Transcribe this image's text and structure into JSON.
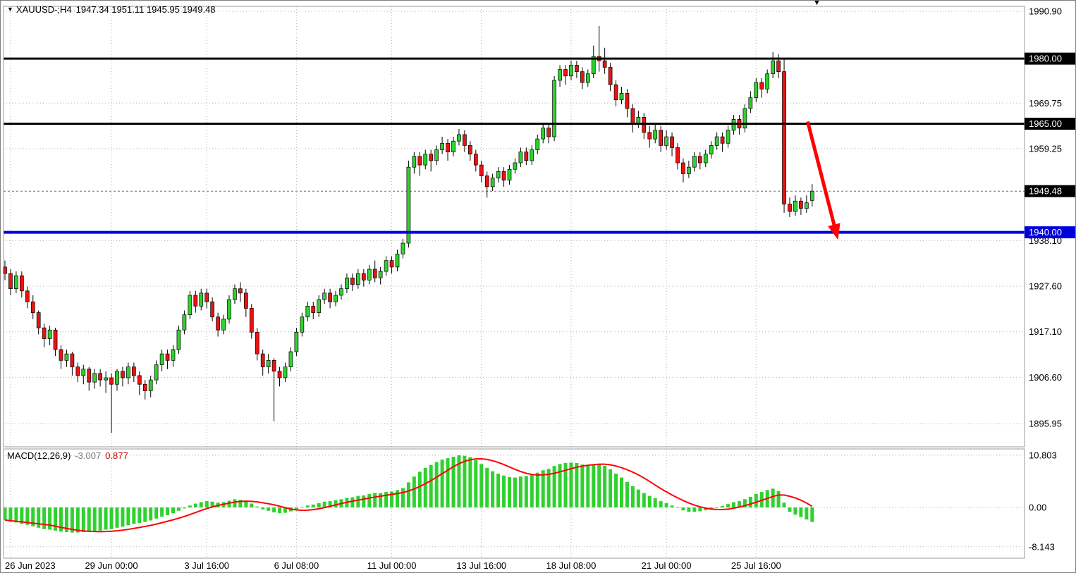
{
  "header": {
    "dropdown_icon": "▼",
    "symbol_period": "XAUUSD-;H4",
    "ohlc": "1947.34 1951.11 1945.95 1949.48",
    "shift_marker": "▼"
  },
  "chart_data": {
    "type": "candlestick",
    "symbol": "XAUUSD-",
    "timeframe": "H4",
    "title": "XAUUSD-;H4",
    "ohlc_display": {
      "open": "1947.34",
      "high": "1951.11",
      "low": "1945.95",
      "close": "1949.48"
    },
    "price_axis": {
      "plain_labels": [
        {
          "price": 1990.9,
          "text": "1990.90"
        },
        {
          "price": 1969.75,
          "text": "1969.75"
        },
        {
          "price": 1959.25,
          "text": "1959.25"
        },
        {
          "price": 1938.1,
          "text": "1938.10"
        },
        {
          "price": 1927.6,
          "text": "1927.60"
        },
        {
          "price": 1917.1,
          "text": "1917.10"
        },
        {
          "price": 1906.6,
          "text": "1906.60"
        },
        {
          "price": 1895.95,
          "text": "1895.95"
        }
      ],
      "boxed_labels": [
        {
          "price": 1980.0,
          "text": "1980.00",
          "bg": "#000000"
        },
        {
          "price": 1965.0,
          "text": "1965.00",
          "bg": "#000000"
        },
        {
          "price": 1949.48,
          "text": "1949.48",
          "bg": "#000000"
        },
        {
          "price": 1940.0,
          "text": "1940.00",
          "bg": "#0000dd"
        }
      ]
    },
    "time_axis": [
      {
        "text": "26 Jun 2023",
        "index": 1
      },
      {
        "text": "29 Jun 00:00",
        "index": 19
      },
      {
        "text": "3 Jul 16:00",
        "index": 36
      },
      {
        "text": "6 Jul 08:00",
        "index": 52
      },
      {
        "text": "11 Jul 00:00",
        "index": 69
      },
      {
        "text": "13 Jul 16:00",
        "index": 85
      },
      {
        "text": "18 Jul 08:00",
        "index": 101
      },
      {
        "text": "21 Jul 00:00",
        "index": 118
      },
      {
        "text": "25 Jul 16:00",
        "index": 134
      }
    ],
    "hlines": [
      {
        "price": 1980.0,
        "color": "#000000",
        "width": 3
      },
      {
        "price": 1965.0,
        "color": "#000000",
        "width": 3
      },
      {
        "price": 1940.0,
        "color": "#0000dd",
        "width": 4
      }
    ],
    "current_price": 1949.48,
    "colors": {
      "up": "#2fd12f",
      "down": "#eb1212",
      "wick": "#000000",
      "histogram": "#2fd12f",
      "signal": "#ff0000",
      "grid": "#b4b4b4",
      "border": "#9a9a9a",
      "arrow": "#ff0000"
    },
    "candles": [
      [
        1932.0,
        1933.5,
        1929.0,
        1930.5
      ],
      [
        1930.5,
        1931.5,
        1925.5,
        1927.0
      ],
      [
        1927.0,
        1931.0,
        1926.0,
        1930.0
      ],
      [
        1930.0,
        1931.0,
        1925.0,
        1926.5
      ],
      [
        1926.5,
        1927.5,
        1922.5,
        1924.0
      ],
      [
        1924.0,
        1925.5,
        1920.0,
        1921.5
      ],
      [
        1921.5,
        1922.0,
        1916.5,
        1918.0
      ],
      [
        1918.0,
        1919.0,
        1913.5,
        1915.5
      ],
      [
        1915.5,
        1918.5,
        1914.0,
        1917.5
      ],
      [
        1917.5,
        1918.0,
        1911.5,
        1913.0
      ],
      [
        1913.0,
        1914.0,
        1908.5,
        1910.5
      ],
      [
        1910.5,
        1913.0,
        1909.0,
        1912.0
      ],
      [
        1912.0,
        1912.5,
        1907.0,
        1909.0
      ],
      [
        1909.0,
        1910.0,
        1905.5,
        1907.0
      ],
      [
        1907.0,
        1909.5,
        1905.0,
        1908.5
      ],
      [
        1908.5,
        1909.0,
        1903.5,
        1905.5
      ],
      [
        1905.5,
        1908.5,
        1904.0,
        1907.5
      ],
      [
        1907.5,
        1908.5,
        1904.5,
        1906.0
      ],
      [
        1906.0,
        1908.0,
        1903.0,
        1906.5
      ],
      [
        1906.5,
        1907.5,
        1893.8,
        1905.0
      ],
      [
        1905.0,
        1908.5,
        1903.5,
        1908.0
      ],
      [
        1908.0,
        1909.0,
        1904.5,
        1906.5
      ],
      [
        1906.5,
        1910.0,
        1905.0,
        1909.0
      ],
      [
        1909.0,
        1910.0,
        1905.5,
        1907.0
      ],
      [
        1907.0,
        1908.0,
        1902.5,
        1905.0
      ],
      [
        1905.0,
        1906.0,
        1901.5,
        1903.5
      ],
      [
        1903.5,
        1907.0,
        1902.0,
        1906.0
      ],
      [
        1906.0,
        1910.5,
        1905.0,
        1909.5
      ],
      [
        1909.5,
        1913.0,
        1908.0,
        1912.0
      ],
      [
        1912.0,
        1913.0,
        1908.5,
        1910.5
      ],
      [
        1910.5,
        1914.0,
        1909.0,
        1913.0
      ],
      [
        1913.0,
        1918.5,
        1912.0,
        1917.5
      ],
      [
        1917.5,
        1922.0,
        1916.5,
        1921.0
      ],
      [
        1921.0,
        1926.5,
        1920.0,
        1925.5
      ],
      [
        1925.5,
        1926.5,
        1921.5,
        1923.0
      ],
      [
        1923.0,
        1927.0,
        1922.0,
        1926.0
      ],
      [
        1926.0,
        1927.0,
        1922.5,
        1924.0
      ],
      [
        1924.0,
        1925.0,
        1919.5,
        1920.5
      ],
      [
        1920.5,
        1921.5,
        1916.0,
        1917.5
      ],
      [
        1917.5,
        1921.0,
        1916.5,
        1920.0
      ],
      [
        1920.0,
        1925.5,
        1919.0,
        1924.5
      ],
      [
        1924.5,
        1928.0,
        1923.5,
        1927.0
      ],
      [
        1927.0,
        1928.5,
        1924.0,
        1926.0
      ],
      [
        1926.0,
        1927.0,
        1920.5,
        1922.5
      ],
      [
        1922.5,
        1923.5,
        1915.5,
        1917.0
      ],
      [
        1917.0,
        1918.0,
        1910.5,
        1912.0
      ],
      [
        1912.0,
        1913.0,
        1907.0,
        1909.0
      ],
      [
        1909.0,
        1912.0,
        1907.5,
        1910.5
      ],
      [
        1910.5,
        1911.0,
        1896.5,
        1908.0
      ],
      [
        1908.0,
        1909.0,
        1904.5,
        1906.5
      ],
      [
        1906.5,
        1910.0,
        1905.5,
        1909.0
      ],
      [
        1909.0,
        1913.5,
        1908.0,
        1912.5
      ],
      [
        1912.5,
        1918.0,
        1911.5,
        1917.0
      ],
      [
        1917.0,
        1921.5,
        1916.0,
        1920.5
      ],
      [
        1920.5,
        1924.0,
        1919.5,
        1923.0
      ],
      [
        1923.0,
        1924.0,
        1920.0,
        1921.5
      ],
      [
        1921.5,
        1925.5,
        1920.5,
        1924.5
      ],
      [
        1924.5,
        1927.0,
        1923.5,
        1926.0
      ],
      [
        1926.0,
        1927.0,
        1922.5,
        1924.0
      ],
      [
        1924.0,
        1926.5,
        1923.0,
        1925.5
      ],
      [
        1925.5,
        1928.0,
        1924.5,
        1927.0
      ],
      [
        1927.0,
        1930.5,
        1926.0,
        1929.5
      ],
      [
        1929.5,
        1930.5,
        1926.5,
        1928.0
      ],
      [
        1928.0,
        1931.5,
        1927.0,
        1930.5
      ],
      [
        1930.5,
        1931.5,
        1927.5,
        1929.0
      ],
      [
        1929.0,
        1932.5,
        1928.0,
        1931.5
      ],
      [
        1931.5,
        1933.5,
        1928.5,
        1929.5
      ],
      [
        1929.5,
        1932.0,
        1928.0,
        1931.0
      ],
      [
        1931.0,
        1934.5,
        1930.0,
        1933.5
      ],
      [
        1933.5,
        1934.5,
        1930.5,
        1932.0
      ],
      [
        1932.0,
        1936.0,
        1931.0,
        1935.0
      ],
      [
        1935.0,
        1938.5,
        1934.0,
        1937.5
      ],
      [
        1937.5,
        1956.5,
        1936.5,
        1955.0
      ],
      [
        1955.0,
        1958.5,
        1953.5,
        1957.5
      ],
      [
        1957.5,
        1958.5,
        1953.0,
        1955.5
      ],
      [
        1955.5,
        1959.0,
        1954.5,
        1958.0
      ],
      [
        1958.0,
        1959.0,
        1954.0,
        1956.5
      ],
      [
        1956.5,
        1960.0,
        1955.5,
        1959.0
      ],
      [
        1959.0,
        1962.0,
        1958.0,
        1960.5
      ],
      [
        1960.5,
        1961.5,
        1956.5,
        1958.5
      ],
      [
        1958.5,
        1962.0,
        1957.5,
        1961.0
      ],
      [
        1961.0,
        1963.8,
        1960.0,
        1962.5
      ],
      [
        1962.5,
        1963.5,
        1958.5,
        1960.0
      ],
      [
        1960.0,
        1961.0,
        1956.5,
        1958.0
      ],
      [
        1958.0,
        1959.0,
        1954.0,
        1955.5
      ],
      [
        1955.5,
        1956.5,
        1951.5,
        1953.0
      ],
      [
        1953.0,
        1954.0,
        1948.0,
        1950.5
      ],
      [
        1950.5,
        1953.5,
        1949.5,
        1952.5
      ],
      [
        1952.5,
        1955.0,
        1951.5,
        1954.0
      ],
      [
        1954.0,
        1955.0,
        1950.5,
        1952.0
      ],
      [
        1952.0,
        1955.5,
        1951.0,
        1954.5
      ],
      [
        1954.5,
        1957.0,
        1953.5,
        1956.0
      ],
      [
        1956.0,
        1959.5,
        1955.0,
        1958.5
      ],
      [
        1958.5,
        1959.5,
        1955.5,
        1956.5
      ],
      [
        1956.5,
        1960.0,
        1955.5,
        1959.0
      ],
      [
        1959.0,
        1962.5,
        1958.0,
        1961.5
      ],
      [
        1961.5,
        1965.0,
        1960.5,
        1964.0
      ],
      [
        1964.0,
        1965.0,
        1960.5,
        1962.0
      ],
      [
        1962.0,
        1976.0,
        1961.0,
        1975.0
      ],
      [
        1975.0,
        1978.5,
        1973.5,
        1977.5
      ],
      [
        1977.5,
        1978.5,
        1974.0,
        1976.0
      ],
      [
        1976.0,
        1979.5,
        1975.0,
        1978.5
      ],
      [
        1978.5,
        1979.5,
        1975.5,
        1977.0
      ],
      [
        1977.0,
        1978.0,
        1973.0,
        1974.5
      ],
      [
        1974.5,
        1977.5,
        1973.5,
        1976.5
      ],
      [
        1976.5,
        1983.0,
        1975.5,
        1980.5
      ],
      [
        1980.5,
        1987.5,
        1977.0,
        1979.5
      ],
      [
        1979.5,
        1982.5,
        1976.5,
        1978.0
      ],
      [
        1978.0,
        1979.0,
        1972.5,
        1974.0
      ],
      [
        1974.0,
        1975.0,
        1969.0,
        1970.5
      ],
      [
        1970.5,
        1973.5,
        1969.5,
        1972.0
      ],
      [
        1972.0,
        1973.0,
        1966.5,
        1968.5
      ],
      [
        1968.5,
        1969.5,
        1963.0,
        1965.0
      ],
      [
        1965.0,
        1968.0,
        1964.0,
        1966.5
      ],
      [
        1966.5,
        1967.5,
        1961.5,
        1963.0
      ],
      [
        1963.0,
        1964.5,
        1959.5,
        1961.5
      ],
      [
        1961.5,
        1965.0,
        1960.5,
        1963.5
      ],
      [
        1963.5,
        1964.5,
        1958.5,
        1960.0
      ],
      [
        1960.0,
        1963.5,
        1959.0,
        1962.0
      ],
      [
        1962.0,
        1963.0,
        1957.5,
        1959.5
      ],
      [
        1959.5,
        1960.5,
        1954.5,
        1956.0
      ],
      [
        1956.0,
        1957.0,
        1951.5,
        1953.5
      ],
      [
        1953.5,
        1956.5,
        1952.5,
        1955.0
      ],
      [
        1955.0,
        1958.5,
        1954.0,
        1957.5
      ],
      [
        1957.5,
        1958.5,
        1954.5,
        1956.0
      ],
      [
        1956.0,
        1959.0,
        1955.0,
        1958.0
      ],
      [
        1958.0,
        1961.0,
        1957.0,
        1960.0
      ],
      [
        1960.0,
        1963.0,
        1959.0,
        1962.0
      ],
      [
        1962.0,
        1963.0,
        1958.5,
        1960.5
      ],
      [
        1960.5,
        1964.5,
        1959.5,
        1963.5
      ],
      [
        1963.5,
        1967.0,
        1962.5,
        1966.0
      ],
      [
        1966.0,
        1967.0,
        1962.5,
        1964.0
      ],
      [
        1964.0,
        1969.5,
        1963.0,
        1968.5
      ],
      [
        1968.5,
        1972.5,
        1967.5,
        1971.0
      ],
      [
        1971.0,
        1975.5,
        1970.0,
        1974.5
      ],
      [
        1974.5,
        1975.5,
        1971.0,
        1973.0
      ],
      [
        1973.0,
        1977.5,
        1972.0,
        1976.5
      ],
      [
        1976.5,
        1981.5,
        1975.5,
        1979.5
      ],
      [
        1979.5,
        1981.0,
        1975.5,
        1977.0
      ],
      [
        1977.0,
        1980.0,
        1944.5,
        1946.5
      ],
      [
        1946.5,
        1948.0,
        1943.5,
        1944.8
      ],
      [
        1944.8,
        1948.5,
        1943.8,
        1947.2
      ],
      [
        1947.2,
        1948.0,
        1944.0,
        1945.5
      ],
      [
        1945.5,
        1948.5,
        1944.5,
        1946.8
      ],
      [
        1947.34,
        1951.11,
        1945.95,
        1949.48
      ]
    ],
    "macd": {
      "name": "MACD(12,26,9)",
      "value": "-3.007",
      "signal": "0.877",
      "scale_labels": [
        {
          "value": 10.803,
          "text": "10.803"
        },
        {
          "value": 0,
          "text": "0.00"
        },
        {
          "value": -8.143,
          "text": "-8.143"
        }
      ],
      "values": [
        -2.6,
        -2.9,
        -3.1,
        -3.4,
        -3.6,
        -3.9,
        -4.2,
        -4.5,
        -4.6,
        -4.8,
        -5.0,
        -5.1,
        -5.2,
        -5.2,
        -5.1,
        -5.0,
        -4.9,
        -4.8,
        -4.6,
        -4.5,
        -4.2,
        -4.0,
        -3.7,
        -3.4,
        -3.2,
        -3.0,
        -2.7,
        -2.3,
        -1.9,
        -1.6,
        -1.2,
        -0.7,
        -0.2,
        0.4,
        0.8,
        1.1,
        1.3,
        1.2,
        1.0,
        1.1,
        1.4,
        1.7,
        1.6,
        1.3,
        0.8,
        0.2,
        -0.4,
        -0.7,
        -1.0,
        -1.2,
        -1.1,
        -0.8,
        -0.4,
        0.1,
        0.4,
        0.6,
        0.9,
        1.2,
        1.3,
        1.5,
        1.7,
        2.0,
        2.1,
        2.4,
        2.5,
        2.8,
        3.0,
        3.0,
        3.2,
        3.3,
        3.6,
        4.0,
        5.2,
        6.4,
        7.4,
        8.2,
        8.8,
        9.4,
        9.9,
        10.2,
        10.5,
        10.8,
        10.7,
        10.4,
        9.8,
        9.0,
        8.2,
        7.5,
        7.0,
        6.6,
        6.3,
        6.2,
        6.4,
        6.5,
        6.8,
        7.2,
        7.7,
        8.0,
        8.6,
        9.0,
        9.2,
        9.3,
        9.2,
        8.9,
        8.7,
        8.8,
        8.9,
        8.6,
        7.9,
        7.0,
        6.2,
        5.3,
        4.4,
        3.7,
        3.0,
        2.4,
        1.9,
        1.3,
        0.9,
        0.4,
        -0.1,
        -0.6,
        -0.9,
        -0.9,
        -0.8,
        -0.6,
        -0.3,
        0.0,
        0.3,
        0.7,
        1.1,
        1.3,
        1.7,
        2.2,
        2.8,
        3.2,
        3.6,
        3.9,
        3.4,
        1.0,
        -0.9,
        -1.5,
        -2.0,
        -2.5,
        -3.007
      ]
    },
    "arrow": {
      "from_index": 143.2,
      "from_price": 1965.5,
      "to_index": 148.6,
      "to_price": 1938.3
    }
  }
}
